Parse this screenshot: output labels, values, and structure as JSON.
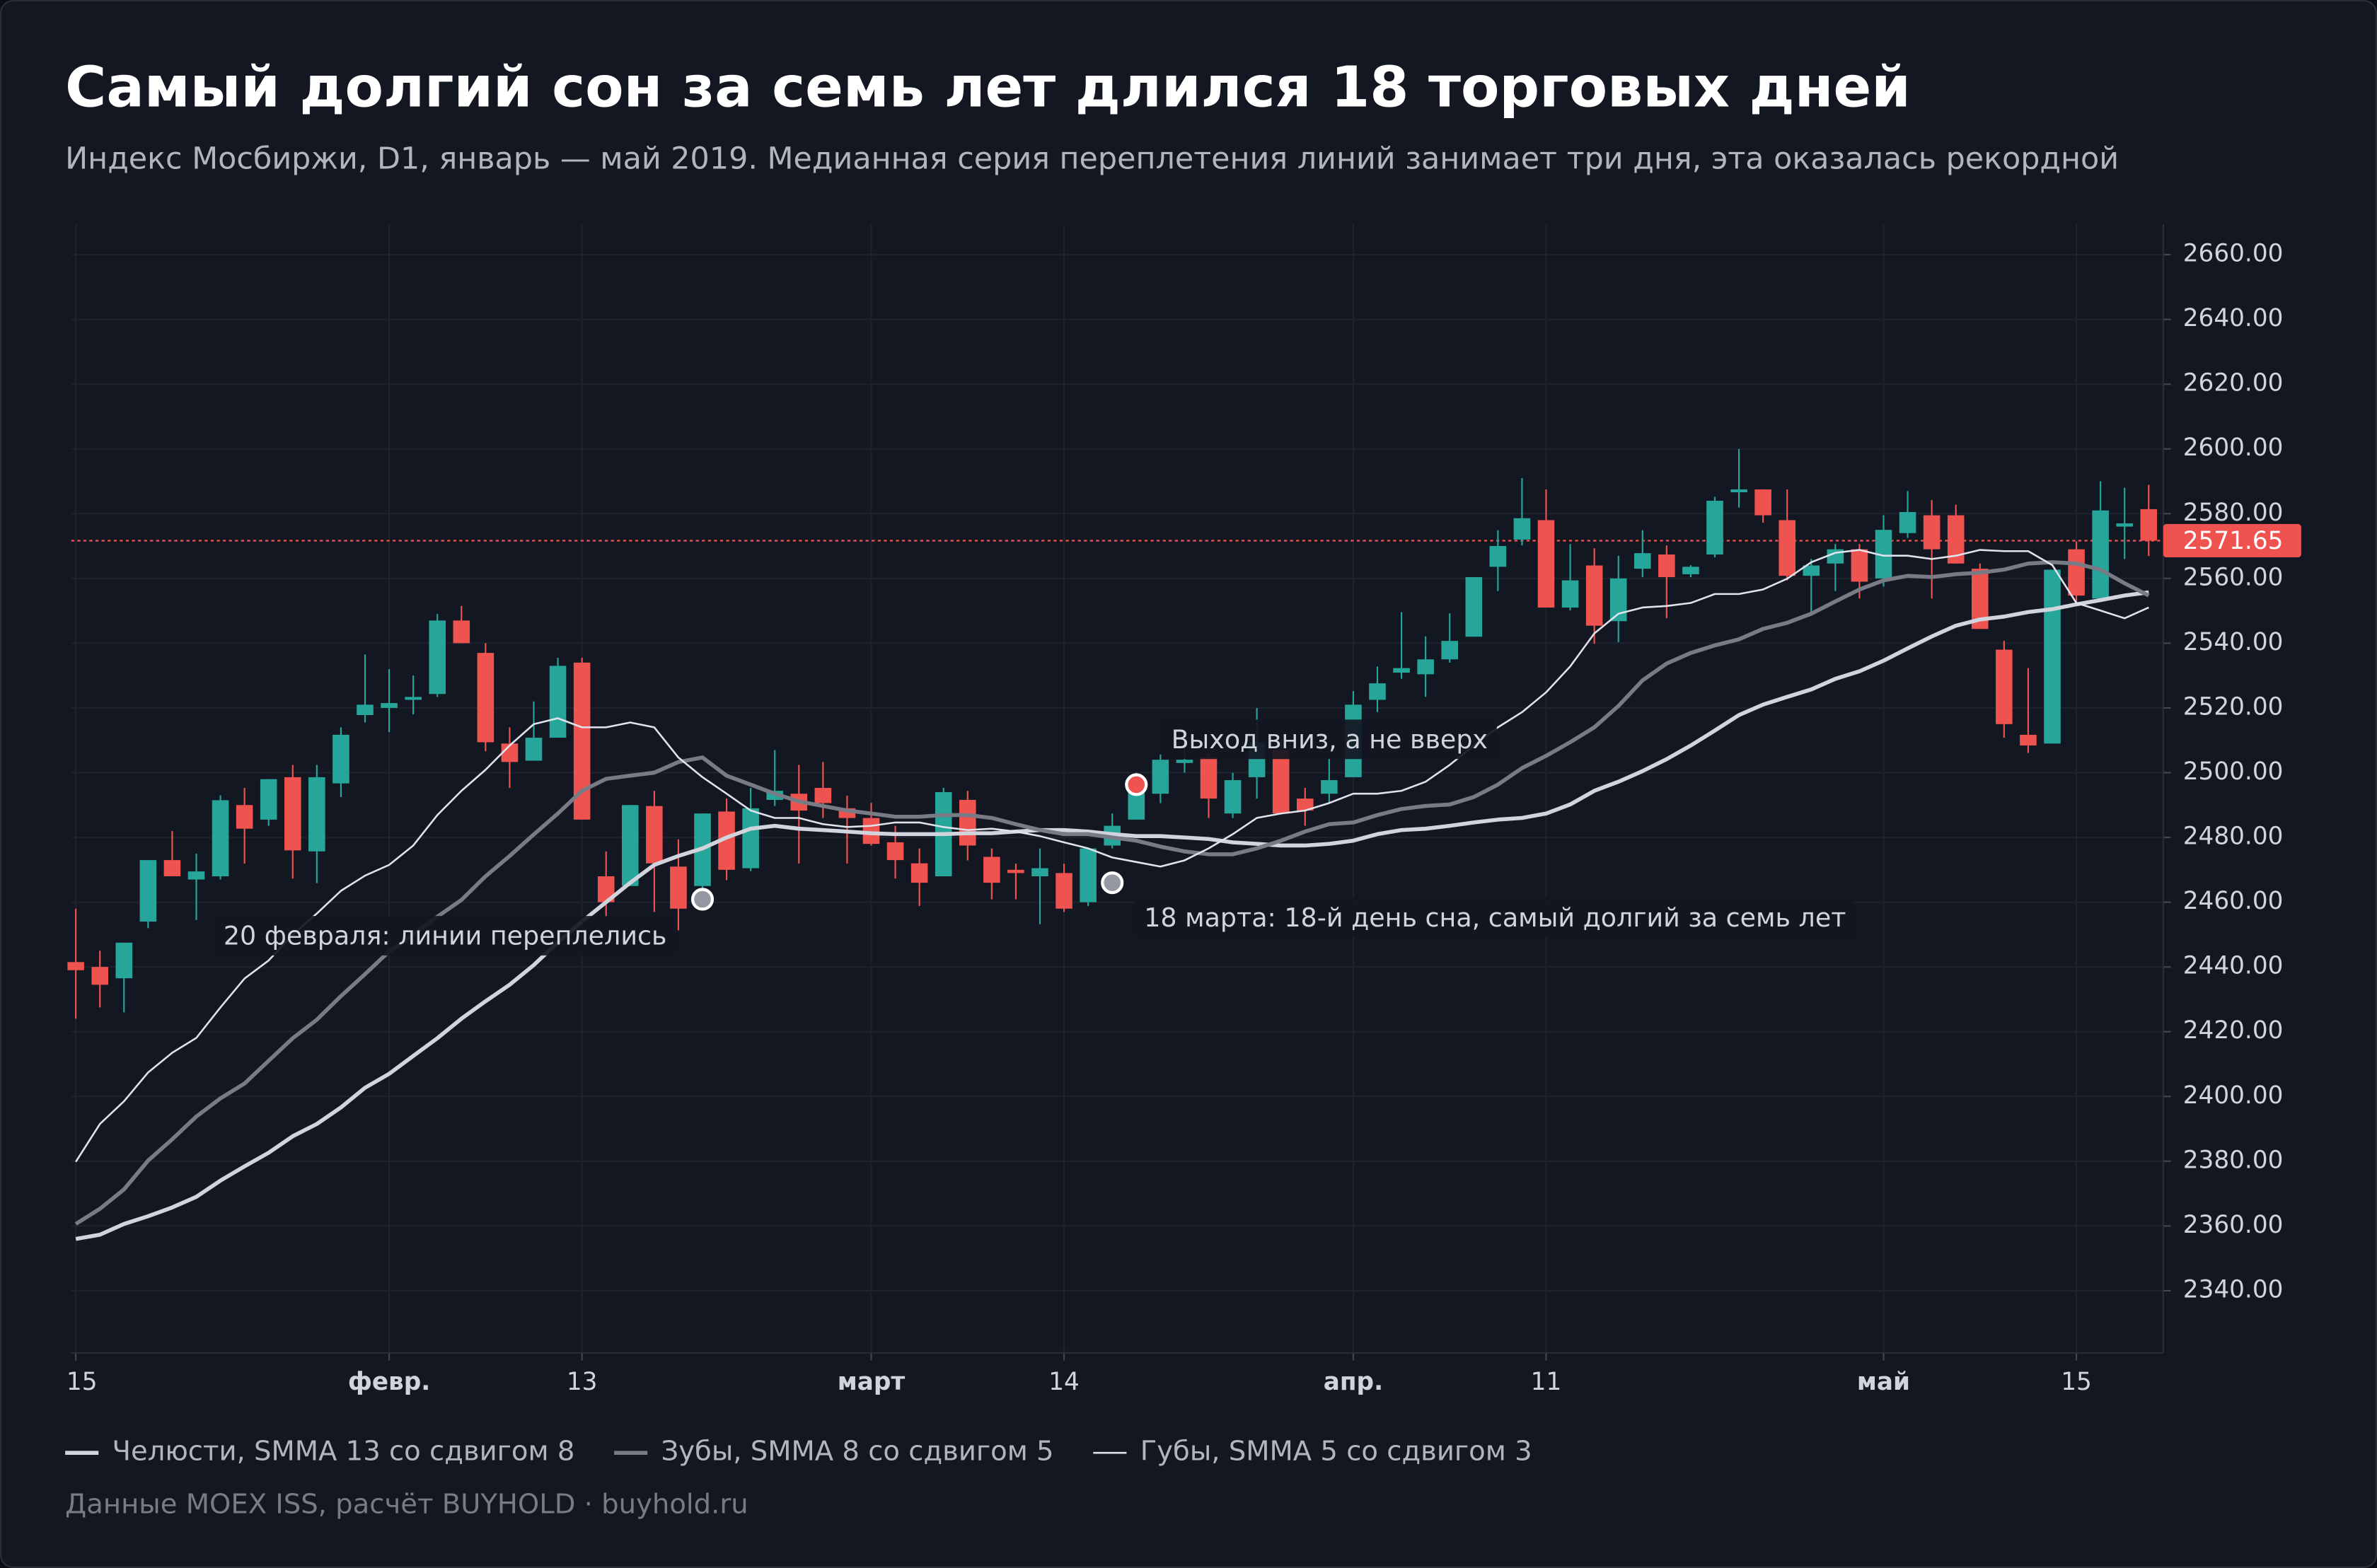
{
  "chart_data": {
    "type": "candlestick",
    "title": "Самый долгий сон за семь лет длился 18 торговых дней",
    "subtitle": "Индекс Мосбиржи, D1, январь — май 2019. Медианная серия переплетения линий занимает три дня, эта оказалась рекордной",
    "source": "Данные MOEX ISS, расчёт BUYHOLD · buyhold.ru",
    "categories": [
      "15",
      null,
      null,
      null,
      null,
      null,
      null,
      null,
      null,
      null,
      null,
      null,
      null,
      "февр.",
      null,
      null,
      null,
      null,
      null,
      null,
      null,
      "13",
      null,
      null,
      null,
      null,
      null,
      null,
      null,
      null,
      null,
      null,
      null,
      "март",
      null,
      null,
      null,
      null,
      null,
      null,
      null,
      "14",
      null,
      null,
      null,
      null,
      null,
      null,
      null,
      null,
      null,
      null,
      null,
      "апр.",
      null,
      null,
      null,
      null,
      null,
      null,
      null,
      "11",
      null,
      null,
      null,
      null,
      null,
      null,
      null,
      null,
      null,
      null,
      null,
      null,
      null,
      "май",
      null,
      null,
      null,
      null,
      null,
      null,
      null,
      "15",
      null,
      null,
      null
    ],
    "open": [
      2441.5,
      2440,
      2436.5,
      2454,
      2473,
      2467,
      2468,
      2490,
      2485.5,
      2498.6,
      2475.7,
      2496.7,
      2517.8,
      2520,
      2522.5,
      2524.3,
      2547,
      2537,
      2509,
      2503.7,
      2510.8,
      2534,
      2468,
      2465,
      2489.7,
      2471,
      2465,
      2488,
      2470.5,
      2491.6,
      2493.5,
      2495.3,
      2489,
      2486,
      2478.5,
      2472,
      2468,
      2491.6,
      2474,
      2470,
      2468,
      2469,
      2460,
      2477.5,
      2485.5,
      2493.5,
      2503,
      2504.7,
      2487.4,
      2498.6,
      2507,
      2492,
      2493.5,
      2498.6,
      2522.5,
      2530.9,
      2530.4,
      2535,
      2542,
      2563.6,
      2572,
      2578,
      2551,
      2564,
      2546.8,
      2563,
      2567.4,
      2561.3,
      2567.4,
      2586.6,
      2587.5,
      2578,
      2560.8,
      2564.6,
      2569,
      2560,
      2574,
      2579.5,
      2579.5,
      2563,
      2538,
      2511.7,
      2509,
      2569,
      2553.8,
      2576,
      2581.4
    ],
    "high": [
      2458,
      2445,
      2447.5,
      2473,
      2482,
      2475,
      2493,
      2495.3,
      2498,
      2502.4,
      2502.4,
      2514,
      2536.5,
      2532,
      2530,
      2549,
      2551.5,
      2540,
      2514,
      2522,
      2535.5,
      2535.5,
      2475.7,
      2490,
      2494.4,
      2479.4,
      2487.4,
      2492,
      2495.3,
      2507,
      2502.4,
      2503.3,
      2492.9,
      2490.7,
      2483.6,
      2476.6,
      2495.3,
      2494.4,
      2476.6,
      2471.9,
      2476.6,
      2471.9,
      2476.6,
      2487.4,
      2500,
      2505.6,
      2510,
      2506,
      2500,
      2520,
      2510.3,
      2495.3,
      2504.7,
      2525.2,
      2532.8,
      2549.6,
      2542.1,
      2549.2,
      2560.4,
      2574.9,
      2591,
      2587.5,
      2570.6,
      2569.3,
      2567,
      2574.9,
      2570.2,
      2564.1,
      2585.2,
      2600,
      2587.5,
      2587.5,
      2566,
      2570.6,
      2570.6,
      2579.5,
      2587,
      2584.2,
      2582.8,
      2564.6,
      2540.7,
      2532.3,
      2562.7,
      2571.4,
      2590,
      2588,
      2588.9
    ],
    "low": [
      2424,
      2427.5,
      2426,
      2452,
      2468,
      2454.5,
      2467,
      2471.9,
      2483.6,
      2467.3,
      2465.9,
      2492.5,
      2515.5,
      2512.5,
      2518,
      2523.4,
      2540,
      2506.6,
      2495.3,
      2503.7,
      2510.8,
      2485.5,
      2455.5,
      2465,
      2457,
      2451.3,
      2462,
      2466.8,
      2469.6,
      2489.7,
      2471.9,
      2486,
      2471.9,
      2477.5,
      2467.3,
      2458.8,
      2468,
      2472.9,
      2460.9,
      2460.9,
      2453.2,
      2457,
      2458.8,
      2476.6,
      2485.5,
      2490.6,
      2500,
      2486,
      2486,
      2492,
      2487.4,
      2483.6,
      2490.6,
      2498.6,
      2518.7,
      2529,
      2523.4,
      2534,
      2542,
      2556.1,
      2570.2,
      2551,
      2550.1,
      2539.8,
      2540.3,
      2560.4,
      2547.7,
      2560.4,
      2566.5,
      2581.9,
      2577.2,
      2559.4,
      2548.6,
      2556.1,
      2553.8,
      2557.5,
      2572.5,
      2553.8,
      2564.6,
      2544.4,
      2510.8,
      2506.1,
      2509,
      2551.5,
      2552.8,
      2566,
      2566.9
    ],
    "close": [
      2439,
      2434.5,
      2447.5,
      2473,
      2468,
      2469.5,
      2491.5,
      2482.7,
      2498,
      2476,
      2498.6,
      2511.7,
      2521,
      2521.5,
      2523.4,
      2547,
      2540,
      2509.4,
      2503.3,
      2510.8,
      2533,
      2485.5,
      2460,
      2490,
      2472,
      2458,
      2487.4,
      2470,
      2489,
      2494.4,
      2488.3,
      2490.6,
      2486,
      2478,
      2473,
      2466,
      2494,
      2477.5,
      2466,
      2469,
      2470.5,
      2458,
      2476.6,
      2483.6,
      2494,
      2504,
      2504,
      2492,
      2497.7,
      2509.4,
      2487.4,
      2488.3,
      2497.7,
      2521,
      2527.6,
      2532.3,
      2535,
      2540.7,
      2560.4,
      2570,
      2578.6,
      2551,
      2559.4,
      2545.4,
      2560,
      2567.8,
      2560.4,
      2563.6,
      2584,
      2587.5,
      2579.5,
      2560.8,
      2564,
      2569,
      2559,
      2575,
      2580.5,
      2569,
      2564.6,
      2544.4,
      2515,
      2508.4,
      2562.7,
      2554.7,
      2581,
      2577,
      2571.65
    ],
    "up_color": "#26a69a",
    "down_color": "#ef5350",
    "lines": [
      {
        "name": "Челюсти, SMMA 13 со сдвигом 8",
        "color": "#d1d4dc",
        "width": 2.6,
        "values": [
          2356,
          2357.3,
          2360.6,
          2363,
          2365.7,
          2369,
          2374,
          2378.4,
          2382.6,
          2387.7,
          2391.5,
          2396.6,
          2402.7,
          2407,
          2412.5,
          2418,
          2424,
          2429.4,
          2434.5,
          2440.6,
          2447.6,
          2454,
          2460,
          2466,
          2471.5,
          2474.3,
          2476.6,
          2480,
          2482.7,
          2483.6,
          2482.7,
          2482.3,
          2481.8,
          2481.3,
          2481,
          2481,
          2481,
          2481.3,
          2481.3,
          2481.8,
          2482.3,
          2482.3,
          2481.8,
          2481,
          2480.4,
          2480.4,
          2480,
          2479.5,
          2478.5,
          2478,
          2477.5,
          2477.5,
          2478,
          2479,
          2481,
          2482.3,
          2482.7,
          2483.6,
          2484.6,
          2485.5,
          2486,
          2487.4,
          2490.2,
          2494.4,
          2497.2,
          2500.5,
          2504.2,
          2508.4,
          2513,
          2517.8,
          2521,
          2523.4,
          2525.7,
          2529,
          2531.3,
          2534.6,
          2538.4,
          2542.1,
          2545.4,
          2547.3,
          2548.2,
          2549.6,
          2550.5,
          2552,
          2553.3,
          2554.7,
          2555.7
        ]
      },
      {
        "name": "Зубы, SMMA 8 со сдвигом 5",
        "color": "#787b86",
        "width": 2.6,
        "values": [
          2360.6,
          2365.3,
          2371.3,
          2380.2,
          2386.8,
          2393.8,
          2399.4,
          2404,
          2411,
          2418,
          2423.7,
          2431,
          2437.8,
          2444.8,
          2450,
          2455.5,
          2460.7,
          2468,
          2474.3,
          2480.9,
          2487.4,
          2494.4,
          2498.1,
          2499.1,
          2500,
          2503.3,
          2504.7,
          2499.1,
          2496.3,
          2493.5,
          2491.1,
          2489.7,
          2488.3,
          2487.4,
          2486.4,
          2486.4,
          2486.9,
          2486.9,
          2486,
          2484.1,
          2482.3,
          2481,
          2481,
          2480,
          2479,
          2477.2,
          2475.7,
          2474.8,
          2474.8,
          2476.6,
          2479,
          2481.8,
          2484.1,
          2484.6,
          2486.9,
          2488.8,
          2489.7,
          2490.2,
          2492.5,
          2496.3,
          2501.4,
          2505.2,
          2509.4,
          2514,
          2520.6,
          2528.5,
          2533.7,
          2537,
          2539.3,
          2541.2,
          2544.4,
          2546.3,
          2549.1,
          2552.9,
          2556.6,
          2559.4,
          2560.8,
          2560.4,
          2561.3,
          2561.8,
          2562.7,
          2564.6,
          2565,
          2564.6,
          2562.7,
          2558.5,
          2554.7
        ]
      },
      {
        "name": "Губы, SMMA 5 со сдвигом 3",
        "color": "#e0e3eb",
        "width": 1.2,
        "values": [
          2379.8,
          2391.5,
          2398.5,
          2407.4,
          2413.5,
          2418.1,
          2427.5,
          2436.4,
          2442,
          2450,
          2456.5,
          2463.5,
          2468.2,
          2471.5,
          2477.5,
          2486.9,
          2494.4,
          2500.9,
          2508.4,
          2515,
          2516.8,
          2514,
          2514,
          2515.5,
          2514,
          2504.7,
          2498.6,
          2493.5,
          2488.3,
          2486,
          2486,
          2484.1,
          2483.2,
          2483.6,
          2484.6,
          2484.6,
          2483.2,
          2482.3,
          2482.7,
          2481.8,
          2480.4,
          2478.5,
          2476.6,
          2473.8,
          2472.4,
          2471,
          2472.9,
          2476.6,
          2481,
          2486,
          2487.4,
          2488.3,
          2490.6,
          2493.5,
          2493.5,
          2494.4,
          2497.2,
          2502.4,
          2508.4,
          2514,
          2518.7,
          2524.8,
          2532.8,
          2543,
          2549.1,
          2551,
          2551.5,
          2552.4,
          2555.2,
          2555.2,
          2556.6,
          2559.9,
          2565,
          2567.9,
          2568.8,
          2567,
          2567,
          2566,
          2567,
          2568.8,
          2568.4,
          2568.4,
          2564.1,
          2552.4,
          2550.1,
          2547.7,
          2551
        ]
      }
    ],
    "annotations": [
      {
        "text": "20 февраля: линии переплелись",
        "at": 26,
        "value": 2460.9,
        "color": "#9598a1"
      },
      {
        "text": "18 марта: 18-й день сна, самый долгий за семь лет",
        "at": 43,
        "value": 2466,
        "color": "#9598a1"
      },
      {
        "text": "Выход вниз, а не вверх",
        "at": 44,
        "value": 2496.3,
        "color": "#ef5350"
      }
    ],
    "last_price": 2571.65,
    "ylim": [
      2320.8,
      2669.4
    ],
    "yticks": [
      {
        "value": 2340,
        "label": "2340.00"
      },
      {
        "value": 2360,
        "label": "2360.00"
      },
      {
        "value": 2380,
        "label": "2380.00"
      },
      {
        "value": 2400,
        "label": "2400.00"
      },
      {
        "value": 2420,
        "label": "2420.00"
      },
      {
        "value": 2440,
        "label": "2440.00"
      },
      {
        "value": 2460,
        "label": "2460.00"
      },
      {
        "value": 2480,
        "label": "2480.00"
      },
      {
        "value": 2500,
        "label": "2500.00"
      },
      {
        "value": 2520,
        "label": "2520.00"
      },
      {
        "value": 2540,
        "label": "2540.00"
      },
      {
        "value": 2560,
        "label": "2560.00"
      },
      {
        "value": 2580,
        "label": "2580.00"
      },
      {
        "value": 2600,
        "label": "2600.00"
      },
      {
        "value": 2620,
        "label": "2620.00"
      },
      {
        "value": 2640,
        "label": "2640.00"
      },
      {
        "value": 2660,
        "label": "2660.00"
      }
    ],
    "grid": true
  }
}
